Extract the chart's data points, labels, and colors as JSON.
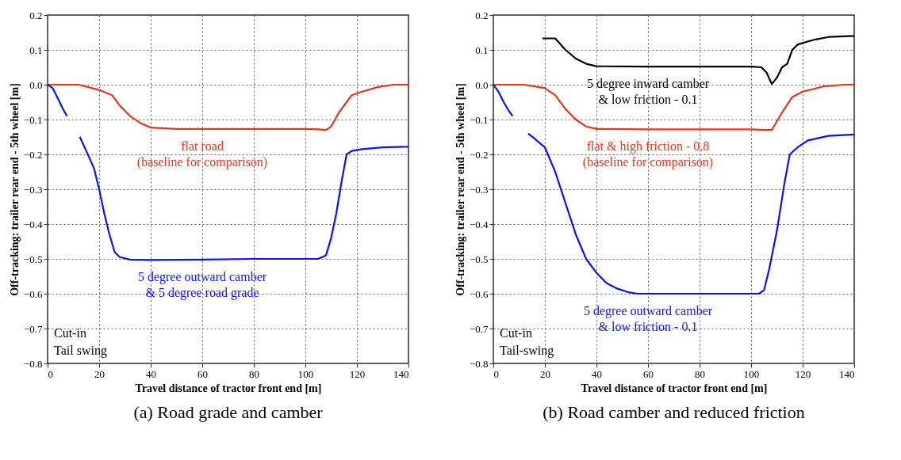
{
  "chart_data": [
    {
      "type": "line",
      "title": "(a) Road grade and camber",
      "xlabel": "Travel distance of tractor front end [m]",
      "ylabel": "Off-tracking: trailer rear end - 5th wheel [m]",
      "xlim": [
        0,
        140
      ],
      "ylim": [
        -0.8,
        0.2
      ],
      "xticks": [
        0,
        20,
        40,
        60,
        80,
        100,
        120,
        140
      ],
      "yticks": [
        -0.8,
        -0.7,
        -0.6,
        -0.5,
        -0.4,
        -0.3,
        -0.2,
        -0.1,
        {
          "value": 0,
          "label": "0.0"
        },
        0.1,
        0.2
      ],
      "grid": true,
      "line_style": "solid",
      "series": [
        {
          "name": "flat road\n(baseline for comparison)",
          "color": "#e8361c",
          "x": [
            0,
            8,
            12,
            20,
            25,
            28,
            32,
            36,
            40,
            50,
            60,
            80,
            100,
            105,
            108,
            110,
            113,
            116,
            118,
            122,
            128,
            134,
            140
          ],
          "values": [
            0,
            0,
            0,
            -0.015,
            -0.03,
            -0.06,
            -0.09,
            -0.11,
            -0.123,
            -0.127,
            -0.127,
            -0.127,
            -0.127,
            -0.128,
            -0.13,
            -0.12,
            -0.08,
            -0.05,
            -0.03,
            -0.02,
            -0.007,
            0,
            0
          ]
        },
        {
          "name": "5 degree outward camber\n& 5 degree road grade",
          "color": "#0a14f0",
          "x": [
            0,
            2,
            4,
            6,
            7.5,
            10,
            12.5,
            15,
            18,
            20,
            22,
            24,
            26,
            28,
            32,
            40,
            60,
            80,
            100,
            105,
            108,
            110,
            112,
            114,
            116,
            118,
            122,
            130,
            140
          ],
          "values": [
            0,
            -0.01,
            -0.04,
            -0.07,
            -0.09,
            null,
            -0.15,
            -0.19,
            -0.24,
            -0.3,
            -0.37,
            -0.43,
            -0.48,
            -0.495,
            -0.502,
            -0.503,
            -0.502,
            -0.5,
            -0.5,
            -0.5,
            -0.49,
            -0.44,
            -0.37,
            -0.28,
            -0.2,
            -0.19,
            -0.185,
            -0.18,
            -0.178
          ]
        }
      ],
      "annotations": [
        "Cut-in",
        "Tail swing"
      ]
    },
    {
      "type": "line",
      "title": "(b) Road camber and reduced friction",
      "xlabel": "Travel distance of tractor front end [m]",
      "ylabel": "Off-tracking: trailer rear end - 5th wheel [m]",
      "xlim": [
        0,
        140
      ],
      "ylim": [
        -0.8,
        0.2
      ],
      "xticks": [
        0,
        20,
        40,
        60,
        80,
        100,
        120,
        140
      ],
      "yticks": [
        -0.8,
        -0.7,
        -0.6,
        -0.5,
        -0.4,
        -0.3,
        -0.2,
        -0.1,
        {
          "value": 0,
          "label": "0.0"
        },
        0.1,
        0.2
      ],
      "grid": true,
      "line_style": "solid",
      "series": [
        {
          "name": "5 degree inward camber\n& low friction - 0.1",
          "color": "#000000",
          "x": [
            19,
            24,
            28,
            32,
            36,
            40,
            60,
            100,
            104,
            106,
            108,
            110,
            112,
            114,
            116,
            118,
            120,
            125,
            130,
            140
          ],
          "values": [
            0.133,
            0.133,
            0.1,
            0.075,
            0.06,
            0.053,
            0.052,
            0.052,
            0.05,
            0.035,
            0.002,
            0.02,
            0.05,
            0.06,
            0.1,
            0.115,
            0.12,
            0.13,
            0.137,
            0.14
          ]
        },
        {
          "name": "flat & high friction - 0.8\n(baseline for comparison)",
          "color": "#e8361c",
          "x": [
            0,
            12,
            20,
            24,
            28,
            32,
            36,
            40,
            60,
            100,
            105,
            108,
            112,
            116,
            120,
            128,
            136,
            140
          ],
          "values": [
            0,
            0,
            -0.01,
            -0.03,
            -0.07,
            -0.1,
            -0.12,
            -0.127,
            -0.128,
            -0.128,
            -0.13,
            -0.13,
            -0.08,
            -0.035,
            -0.02,
            -0.005,
            0,
            0
          ]
        },
        {
          "name": "5 degree outward camber\n& low friction - 0.1",
          "color": "#0a14f0",
          "x": [
            0,
            2,
            4,
            6,
            7.5,
            10,
            13.5,
            16,
            20,
            24,
            28,
            32,
            36,
            40,
            44,
            48,
            52,
            56,
            60,
            80,
            103,
            105,
            107,
            110,
            113,
            115,
            118,
            122,
            130,
            140
          ],
          "values": [
            0,
            -0.02,
            -0.05,
            -0.075,
            -0.09,
            null,
            -0.14,
            -0.155,
            -0.18,
            -0.25,
            -0.34,
            -0.43,
            -0.5,
            -0.54,
            -0.57,
            -0.585,
            -0.595,
            -0.6,
            -0.6,
            -0.6,
            -0.6,
            -0.59,
            -0.53,
            -0.42,
            -0.28,
            -0.2,
            -0.18,
            -0.16,
            -0.147,
            -0.143
          ]
        }
      ],
      "annotations": [
        "Cut-in",
        "Tail-swing"
      ]
    }
  ]
}
